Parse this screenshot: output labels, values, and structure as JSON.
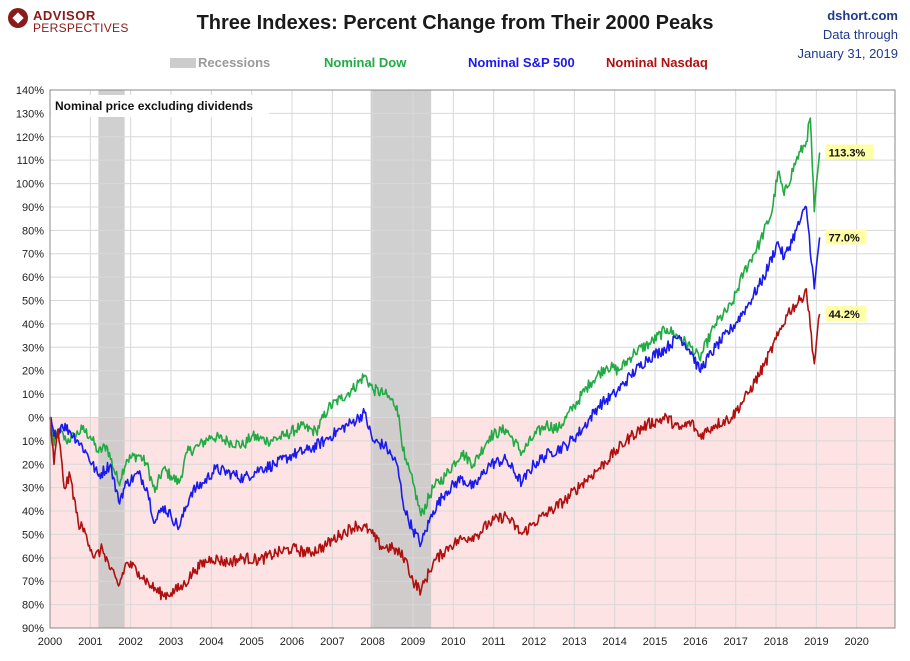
{
  "branding": {
    "logo_line1": "ADVISOR",
    "logo_line2": "PERSPECTIVES",
    "site": "dshort.com",
    "data_through_label": "Data through",
    "data_through_date": "January 31, 2019"
  },
  "chart_data": {
    "type": "line",
    "title": "Three Indexes: Percent Change from Their 2000 Peaks",
    "annotation": "Nominal price excluding dividends",
    "xlabel": "",
    "ylabel": "",
    "xlim": [
      2000,
      2020.95
    ],
    "ylim": [
      -90,
      140
    ],
    "x_ticks": [
      "2000",
      "2001",
      "2002",
      "2003",
      "2004",
      "2005",
      "2006",
      "2007",
      "2008",
      "2009",
      "2010",
      "2011",
      "2012",
      "2013",
      "2014",
      "2015",
      "2016",
      "2017",
      "2018",
      "2019",
      "2020"
    ],
    "y_ticks": [
      {
        "value": 140,
        "label": "140%"
      },
      {
        "value": 130,
        "label": "130%"
      },
      {
        "value": 120,
        "label": "120%"
      },
      {
        "value": 110,
        "label": "110%"
      },
      {
        "value": 100,
        "label": "100%"
      },
      {
        "value": 90,
        "label": "90%"
      },
      {
        "value": 80,
        "label": "80%"
      },
      {
        "value": 70,
        "label": "70%"
      },
      {
        "value": 60,
        "label": "60%"
      },
      {
        "value": 50,
        "label": "50%"
      },
      {
        "value": 40,
        "label": "40%"
      },
      {
        "value": 30,
        "label": "30%"
      },
      {
        "value": 20,
        "label": "20%"
      },
      {
        "value": 10,
        "label": "10%"
      },
      {
        "value": 0,
        "label": "0%"
      },
      {
        "value": -10,
        "label": "10%"
      },
      {
        "value": -20,
        "label": "20%"
      },
      {
        "value": -30,
        "label": "30%"
      },
      {
        "value": -40,
        "label": "40%"
      },
      {
        "value": -50,
        "label": "50%"
      },
      {
        "value": -60,
        "label": "60%"
      },
      {
        "value": -70,
        "label": "70%"
      },
      {
        "value": -80,
        "label": "80%"
      },
      {
        "value": -90,
        "label": "90%"
      }
    ],
    "grid": true,
    "negative_region_color": "#fde3e3",
    "legend_placement": "top-center",
    "recessions": [
      {
        "start": 2001.2,
        "end": 2001.85
      },
      {
        "start": 2007.95,
        "end": 2009.45
      }
    ],
    "legend": [
      {
        "label": "Recessions",
        "color": "#9a9a9a",
        "swatch_color": "#cccccc"
      },
      {
        "label": "Nominal Dow",
        "color": "#22aa44"
      },
      {
        "label": "Nominal S&P 500",
        "color": "#1a1aee"
      },
      {
        "label": "Nominal Nasdaq",
        "color": "#b01010"
      }
    ],
    "series": [
      {
        "name": "Nominal Dow",
        "color": "#22aa44",
        "final_label": "113.3%",
        "final_value": 113.3,
        "x": [
          2000.0,
          2000.1,
          2000.2,
          2000.4,
          2000.6,
          2000.8,
          2001.0,
          2001.2,
          2001.4,
          2001.7,
          2001.9,
          2002.2,
          2002.4,
          2002.6,
          2002.8,
          2003.0,
          2003.2,
          2003.4,
          2003.7,
          2004.0,
          2004.4,
          2004.8,
          2005.0,
          2005.4,
          2005.8,
          2006.2,
          2006.6,
          2006.9,
          2007.2,
          2007.5,
          2007.8,
          2008.0,
          2008.3,
          2008.6,
          2008.8,
          2009.0,
          2009.2,
          2009.5,
          2009.8,
          2010.2,
          2010.5,
          2010.9,
          2011.3,
          2011.7,
          2012.0,
          2012.3,
          2012.6,
          2013.0,
          2013.4,
          2013.8,
          2014.1,
          2014.5,
          2014.9,
          2015.3,
          2015.6,
          2015.9,
          2016.1,
          2016.5,
          2016.9,
          2017.2,
          2017.6,
          2017.9,
          2018.05,
          2018.2,
          2018.5,
          2018.75,
          2018.85,
          2018.95,
          2019.08
        ],
        "y": [
          0,
          -12,
          -5,
          -10,
          -8,
          -5,
          -8,
          -15,
          -12,
          -28,
          -18,
          -16,
          -20,
          -32,
          -22,
          -25,
          -28,
          -15,
          -12,
          -8,
          -10,
          -12,
          -8,
          -10,
          -8,
          -4,
          -6,
          4,
          8,
          12,
          18,
          12,
          10,
          5,
          -18,
          -28,
          -42,
          -30,
          -25,
          -15,
          -20,
          -8,
          -5,
          -15,
          -8,
          -3,
          -5,
          5,
          15,
          22,
          20,
          28,
          32,
          38,
          34,
          30,
          25,
          40,
          48,
          62,
          75,
          88,
          105,
          95,
          110,
          118,
          128,
          88,
          113.3
        ]
      },
      {
        "name": "Nominal S&P 500",
        "color": "#1a1aee",
        "final_label": "77.0%",
        "final_value": 77.0,
        "x": [
          2000.0,
          2000.1,
          2000.3,
          2000.5,
          2000.7,
          2000.9,
          2001.2,
          2001.5,
          2001.7,
          2001.9,
          2002.2,
          2002.4,
          2002.6,
          2002.8,
          2003.0,
          2003.2,
          2003.5,
          2003.8,
          2004.1,
          2004.5,
          2004.8,
          2005.2,
          2005.6,
          2006.0,
          2006.4,
          2006.8,
          2007.2,
          2007.5,
          2007.8,
          2008.0,
          2008.3,
          2008.6,
          2008.8,
          2009.0,
          2009.2,
          2009.5,
          2009.8,
          2010.2,
          2010.5,
          2010.9,
          2011.3,
          2011.7,
          2012.0,
          2012.4,
          2012.8,
          2013.2,
          2013.6,
          2014.0,
          2014.4,
          2014.8,
          2015.3,
          2015.6,
          2015.9,
          2016.1,
          2016.5,
          2016.9,
          2017.3,
          2017.7,
          2018.05,
          2018.2,
          2018.5,
          2018.75,
          2018.95,
          2019.08
        ],
        "y": [
          0,
          -8,
          -3,
          -6,
          -10,
          -15,
          -25,
          -20,
          -36,
          -28,
          -24,
          -30,
          -45,
          -38,
          -42,
          -47,
          -32,
          -28,
          -22,
          -24,
          -26,
          -22,
          -20,
          -16,
          -14,
          -10,
          -5,
          -2,
          2,
          -10,
          -12,
          -20,
          -40,
          -48,
          -54,
          -40,
          -32,
          -26,
          -30,
          -20,
          -18,
          -28,
          -20,
          -15,
          -12,
          -5,
          5,
          10,
          18,
          25,
          30,
          35,
          28,
          20,
          30,
          38,
          48,
          60,
          75,
          68,
          80,
          90,
          55,
          77.0
        ]
      },
      {
        "name": "Nominal Nasdaq",
        "color": "#b01010",
        "final_label": "44.2%",
        "final_value": 44.2,
        "x": [
          2000.0,
          2000.1,
          2000.2,
          2000.35,
          2000.5,
          2000.7,
          2000.9,
          2001.1,
          2001.3,
          2001.5,
          2001.7,
          2001.9,
          2002.2,
          2002.5,
          2002.8,
          2003.0,
          2003.3,
          2003.6,
          2004.0,
          2004.4,
          2004.8,
          2005.2,
          2005.6,
          2006.0,
          2006.4,
          2006.8,
          2007.2,
          2007.6,
          2007.9,
          2008.2,
          2008.5,
          2008.8,
          2009.0,
          2009.2,
          2009.5,
          2009.9,
          2010.2,
          2010.6,
          2010.9,
          2011.3,
          2011.7,
          2012.0,
          2012.4,
          2012.8,
          2013.2,
          2013.6,
          2014.0,
          2014.4,
          2014.8,
          2015.3,
          2015.6,
          2015.9,
          2016.1,
          2016.5,
          2016.9,
          2017.3,
          2017.7,
          2018.05,
          2018.3,
          2018.6,
          2018.75,
          2018.95,
          2019.08
        ],
        "y": [
          0,
          -20,
          -5,
          -30,
          -25,
          -45,
          -50,
          -60,
          -56,
          -65,
          -72,
          -62,
          -66,
          -72,
          -76,
          -75,
          -72,
          -65,
          -60,
          -62,
          -60,
          -61,
          -58,
          -56,
          -58,
          -55,
          -50,
          -46,
          -48,
          -55,
          -56,
          -60,
          -70,
          -74,
          -62,
          -55,
          -52,
          -50,
          -45,
          -42,
          -50,
          -45,
          -40,
          -35,
          -28,
          -22,
          -15,
          -8,
          -3,
          0,
          -5,
          -2,
          -8,
          -3,
          0,
          10,
          22,
          35,
          45,
          50,
          55,
          23,
          44.2
        ]
      }
    ]
  }
}
